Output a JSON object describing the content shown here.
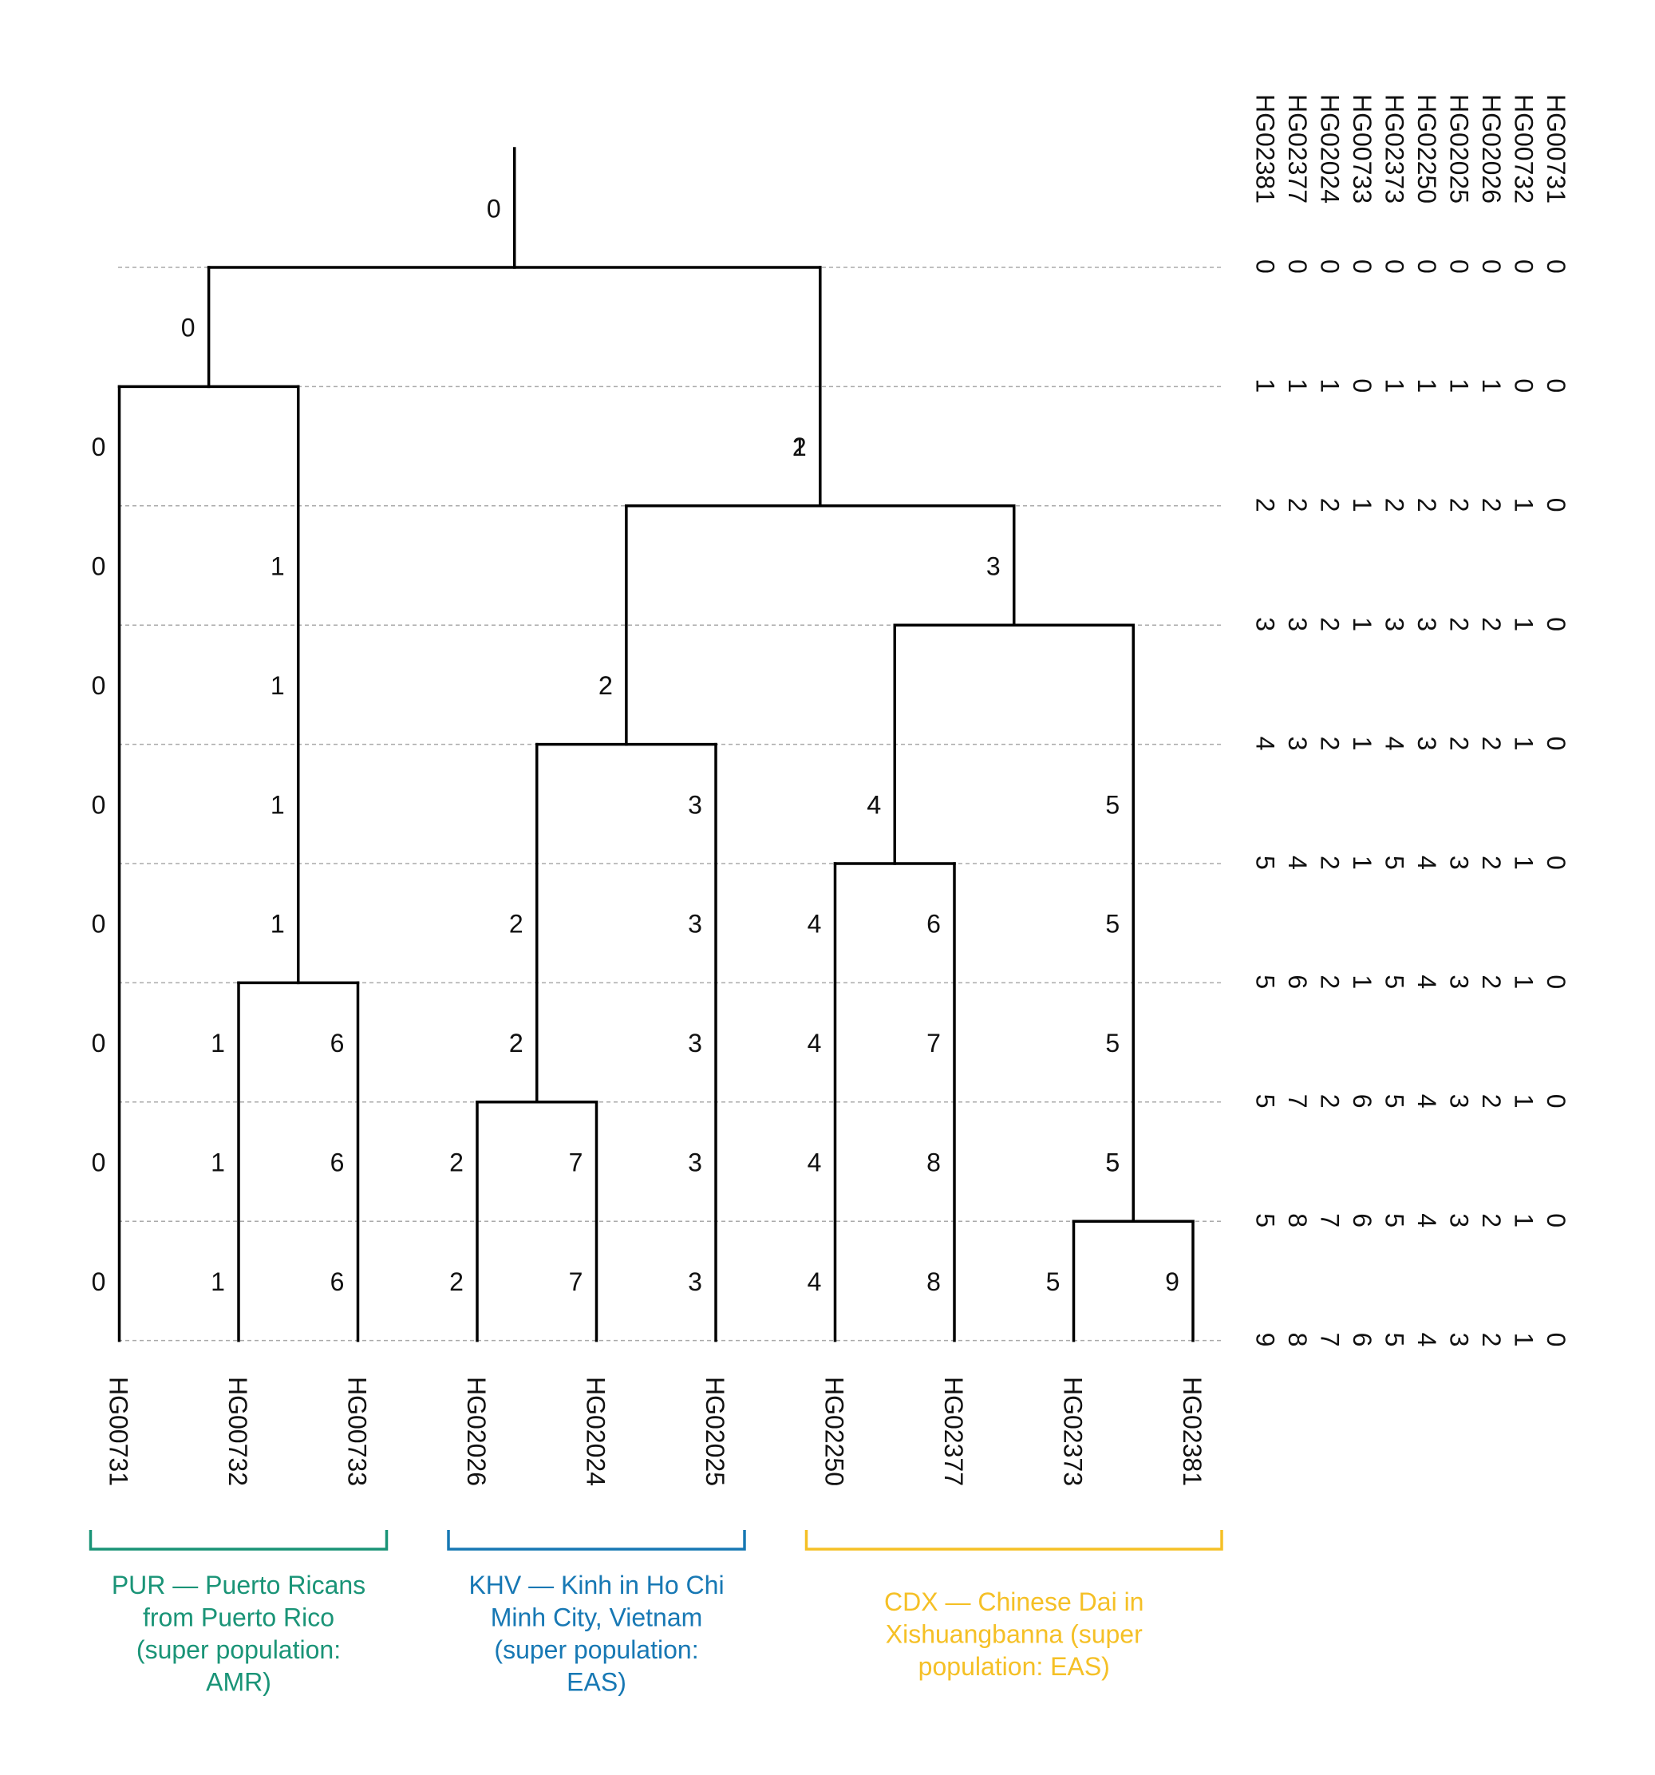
{
  "leaves": [
    "HG00731",
    "HG00732",
    "HG00733",
    "HG02026",
    "HG02024",
    "HG02025",
    "HG02250",
    "HG02377",
    "HG02373",
    "HG02381"
  ],
  "matrix_order": [
    "HG00731",
    "HG00732",
    "HG02026",
    "HG02025",
    "HG02250",
    "HG02373",
    "HG00733",
    "HG02024",
    "HG02377",
    "HG02381"
  ],
  "matrix": [
    [
      0,
      0,
      0,
      0,
      0,
      0,
      0,
      0,
      0,
      0
    ],
    [
      0,
      0,
      1,
      1,
      1,
      1,
      0,
      1,
      1,
      1
    ],
    [
      0,
      1,
      2,
      2,
      2,
      2,
      1,
      2,
      2,
      2
    ],
    [
      0,
      1,
      2,
      2,
      3,
      3,
      1,
      2,
      3,
      3
    ],
    [
      0,
      1,
      2,
      2,
      3,
      4,
      1,
      2,
      3,
      4
    ],
    [
      0,
      1,
      2,
      3,
      4,
      5,
      1,
      2,
      4,
      5
    ],
    [
      0,
      1,
      2,
      3,
      4,
      5,
      1,
      2,
      6,
      5
    ],
    [
      0,
      1,
      2,
      3,
      4,
      5,
      6,
      2,
      7,
      5
    ],
    [
      0,
      1,
      2,
      3,
      4,
      5,
      6,
      7,
      8,
      5
    ],
    [
      0,
      1,
      2,
      3,
      4,
      5,
      6,
      7,
      8,
      9
    ]
  ],
  "internal_nodes": [
    {
      "id": "root",
      "children": [
        "n1",
        "n2"
      ],
      "depth": 0,
      "label": "0"
    },
    {
      "id": "n1",
      "children": [
        "HG00731",
        "n3"
      ],
      "depth": 1,
      "label": "0"
    },
    {
      "id": "n2",
      "children": [
        "n4",
        "n5"
      ],
      "depth": 2,
      "label": "1"
    },
    {
      "id": "n4",
      "children": [
        "n6",
        "HG02025"
      ],
      "depth": 4,
      "label": "2"
    },
    {
      "id": "n5",
      "children": [
        "n7",
        "n8"
      ],
      "depth": 3,
      "label": "3"
    },
    {
      "id": "n3",
      "children": [
        "HG00732",
        "HG00733"
      ],
      "depth": 6,
      "label": "1"
    },
    {
      "id": "n6",
      "children": [
        "HG02026",
        "HG02024"
      ],
      "depth": 7,
      "label": "2"
    },
    {
      "id": "n7",
      "children": [
        "HG02250",
        "HG02377"
      ],
      "depth": 5,
      "label": "4"
    },
    {
      "id": "n8",
      "children": [
        "HG02373",
        "HG02381"
      ],
      "depth": 8,
      "label": "5"
    }
  ],
  "populations": [
    {
      "label": "PUR — Puerto Ricans from Puerto Rico (super population: AMR)",
      "lines": [
        "PUR — Puerto Ricans",
        "from Puerto Rico",
        "(super population:",
        "AMR)"
      ],
      "first_leaf": 0,
      "last_leaf": 2,
      "color": "#1a9477"
    },
    {
      "label": "KHV — Kinh in Ho Chi Minh City, Vietnam (super population: EAS)",
      "lines": [
        "KHV — Kinh in Ho Chi",
        "Minh City, Vietnam",
        "(super population:",
        "EAS)"
      ],
      "first_leaf": 3,
      "last_leaf": 5,
      "color": "#1778b4"
    },
    {
      "label": "CDX — Chinese Dai in Xishuangbanna (super population: EAS)",
      "lines": [
        "CDX — Chinese Dai in",
        "Xishuangbanna (super",
        "population: EAS)"
      ],
      "first_leaf": 6,
      "last_leaf": 9,
      "color": "#f5c026"
    }
  ]
}
